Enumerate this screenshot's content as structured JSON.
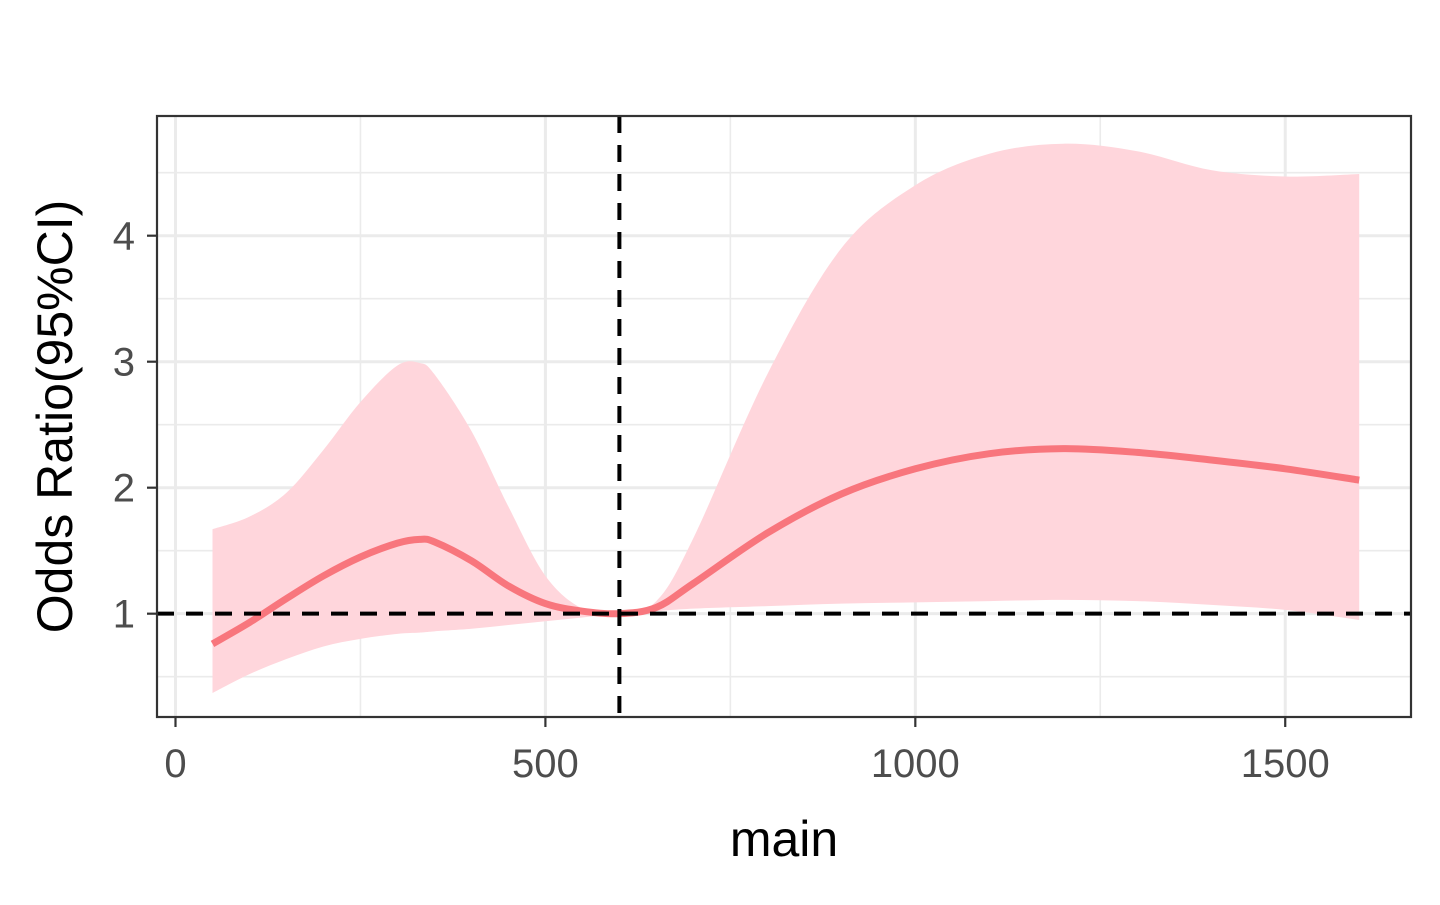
{
  "chart_data": {
    "type": "line",
    "title": "",
    "xlabel": "main",
    "ylabel": "Odds Ratio(95%CI)",
    "xlim": [
      -25,
      1670
    ],
    "ylim": [
      0.18,
      4.95
    ],
    "x_ticks": [
      0,
      500,
      1000,
      1500
    ],
    "x_tick_labels": [
      "0",
      "500",
      "1000",
      "1500"
    ],
    "y_ticks": [
      1,
      2,
      3,
      4
    ],
    "y_tick_labels": [
      "1",
      "2",
      "3",
      "4"
    ],
    "grid": true,
    "legend": "none",
    "reference_lines": {
      "vertical_x": 600,
      "horizontal_y": 1,
      "style": "dashed",
      "color": "#000000"
    },
    "series": [
      {
        "color": "#f8767d",
        "band_color": "#ffd6dc",
        "x": [
          50,
          100,
          150,
          200,
          250,
          300,
          330,
          350,
          400,
          450,
          500,
          550,
          600,
          650,
          700,
          800,
          900,
          1000,
          1100,
          1200,
          1300,
          1400,
          1500,
          1600
        ],
        "y": [
          0.76,
          0.93,
          1.12,
          1.3,
          1.45,
          1.56,
          1.59,
          1.57,
          1.42,
          1.22,
          1.08,
          1.02,
          1.0,
          1.05,
          1.24,
          1.64,
          1.95,
          2.15,
          2.27,
          2.31,
          2.28,
          2.22,
          2.15,
          2.06
        ],
        "lower": [
          0.37,
          0.52,
          0.64,
          0.74,
          0.8,
          0.84,
          0.85,
          0.86,
          0.88,
          0.91,
          0.94,
          0.97,
          1.0,
          1.02,
          1.04,
          1.06,
          1.08,
          1.09,
          1.1,
          1.11,
          1.1,
          1.07,
          1.03,
          0.95
        ],
        "upper": [
          1.67,
          1.77,
          1.96,
          2.3,
          2.68,
          2.97,
          2.99,
          2.9,
          2.45,
          1.85,
          1.3,
          1.04,
          1.0,
          1.1,
          1.6,
          2.9,
          3.9,
          4.4,
          4.65,
          4.73,
          4.67,
          4.52,
          4.47,
          4.49
        ]
      }
    ]
  }
}
